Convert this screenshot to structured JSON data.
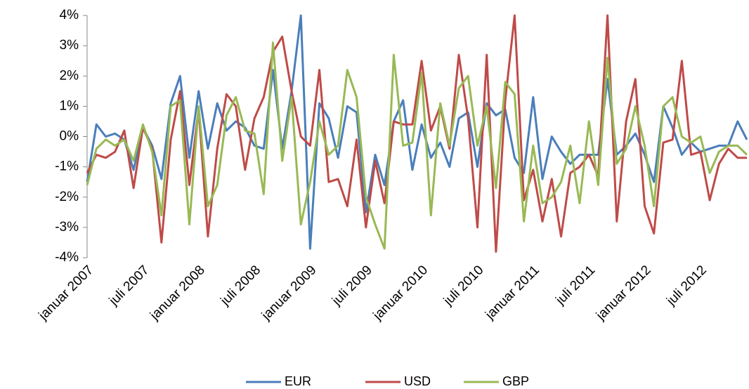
{
  "chart_data": {
    "type": "line",
    "categories": [
      "januar 2007",
      null,
      null,
      null,
      null,
      null,
      "juli 2007",
      null,
      null,
      null,
      null,
      null,
      "januar 2008",
      null,
      null,
      null,
      null,
      null,
      "juli 2008",
      null,
      null,
      null,
      null,
      null,
      "januar 2009",
      null,
      null,
      null,
      null,
      null,
      "juli 2009",
      null,
      null,
      null,
      null,
      null,
      "januar 2010",
      null,
      null,
      null,
      null,
      null,
      "juli 2010",
      null,
      null,
      null,
      null,
      null,
      "januar 2011",
      null,
      null,
      null,
      null,
      null,
      "juli 2011",
      null,
      null,
      null,
      null,
      null,
      "januar 2012",
      null,
      null,
      null,
      null,
      null,
      "juli 2012",
      null,
      null,
      null,
      null,
      null
    ],
    "series": [
      {
        "name": "EUR",
        "color": "#4a7ebb",
        "values": [
          -1.5,
          0.4,
          0.0,
          0.1,
          -0.1,
          -1.1,
          0.3,
          -0.3,
          -1.4,
          1.1,
          2.0,
          -0.7,
          1.5,
          -0.4,
          1.1,
          0.2,
          0.5,
          0.3,
          -0.3,
          -0.4,
          2.2,
          -0.4,
          1.5,
          4.0,
          -3.7,
          1.1,
          0.6,
          -0.7,
          1.0,
          0.8,
          -2.5,
          -0.6,
          -1.6,
          0.5,
          1.2,
          -1.1,
          0.4,
          -0.7,
          -0.2,
          -1.0,
          0.6,
          0.8,
          -1.0,
          1.1,
          0.7,
          0.9,
          -0.7,
          -1.2,
          1.3,
          -1.4,
          0.0,
          -0.5,
          -0.9,
          -0.6,
          -0.6,
          -0.6,
          1.9,
          -0.6,
          -0.3,
          0.1,
          -0.6,
          -1.5,
          1.0,
          0.3,
          -0.6,
          -0.2,
          -0.5,
          -0.4,
          -0.3,
          -0.3,
          0.5,
          -0.1
        ]
      },
      {
        "name": "USD",
        "color": "#be4b48",
        "values": [
          -1.2,
          -0.6,
          -0.7,
          -0.5,
          0.2,
          -1.7,
          0.3,
          -0.4,
          -3.5,
          -0.1,
          1.5,
          -1.6,
          0.9,
          -3.3,
          -0.4,
          1.4,
          1.0,
          -1.1,
          0.6,
          1.3,
          2.8,
          3.3,
          1.5,
          0.0,
          -0.3,
          2.2,
          -1.5,
          -1.4,
          -2.3,
          -0.1,
          -3.0,
          -0.8,
          -2.2,
          0.5,
          0.4,
          0.4,
          2.5,
          0.2,
          1.0,
          -0.4,
          2.7,
          0.6,
          -3.0,
          2.7,
          -3.8,
          1.2,
          4.0,
          -2.1,
          -1.1,
          -2.8,
          -1.4,
          -3.3,
          -1.2,
          -1.0,
          -0.6,
          -1.3,
          4.0,
          -2.8,
          0.5,
          1.9,
          -2.3,
          -3.2,
          -0.2,
          -0.1,
          2.5,
          -0.6,
          -0.5,
          -2.1,
          -0.9,
          -0.4,
          -0.7,
          -0.7
        ]
      },
      {
        "name": "GBP",
        "color": "#98b954",
        "values": [
          -1.6,
          -0.4,
          -0.1,
          -0.3,
          -0.1,
          -0.8,
          0.4,
          -0.5,
          -2.6,
          1.0,
          1.2,
          -2.9,
          1.0,
          -2.3,
          -1.6,
          0.7,
          1.3,
          0.2,
          0.1,
          -1.9,
          3.1,
          -0.8,
          1.3,
          -2.9,
          -1.5,
          0.5,
          -0.6,
          -0.3,
          2.2,
          1.3,
          -2.0,
          -2.9,
          -3.7,
          2.7,
          -0.3,
          -0.2,
          2.1,
          -2.6,
          1.1,
          -0.3,
          1.6,
          2.0,
          -0.3,
          1.0,
          -1.7,
          1.8,
          1.4,
          -2.8,
          -0.3,
          -2.2,
          -2.0,
          -1.5,
          -0.3,
          -2.2,
          0.5,
          -1.6,
          2.6,
          -0.9,
          -0.4,
          1.0,
          -0.3,
          -2.3,
          1.0,
          1.3,
          0.0,
          -0.2,
          0.0,
          -1.2,
          -0.5,
          -0.3,
          -0.3,
          -0.6
        ]
      }
    ],
    "ylim": [
      -4,
      4
    ],
    "yticks": [
      {
        "value": -4,
        "label": "-4%"
      },
      {
        "value": -3,
        "label": "-3%"
      },
      {
        "value": -2,
        "label": "-2%"
      },
      {
        "value": -1,
        "label": "-1%"
      },
      {
        "value": 0,
        "label": "0%"
      },
      {
        "value": 1,
        "label": "1%"
      },
      {
        "value": 2,
        "label": "2%"
      },
      {
        "value": 3,
        "label": "3%"
      },
      {
        "value": 4,
        "label": "4%"
      }
    ],
    "grid": false,
    "legend": "bottom"
  }
}
